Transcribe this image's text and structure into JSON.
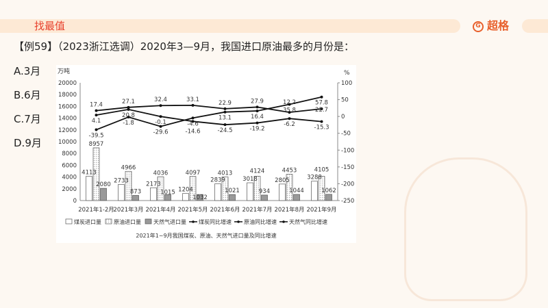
{
  "header": {
    "title": "找最值",
    "brand": "超格"
  },
  "question": "【例59】（2023浙江选调）2020年3—9月，我国进口原油最多的月份是：",
  "options": [
    "A.3月",
    "B.6月",
    "C.7月",
    "D.9月"
  ],
  "chart_data": {
    "type": "bar+line",
    "title": "2021年1~9月我国煤炭、原油、天然气进口量及同比增速",
    "ylabel_left": "万吨",
    "ylabel_right": "%",
    "ylim_left": [
      0,
      20000
    ],
    "yticks_left": [
      0,
      2000,
      4000,
      6000,
      8000,
      10000,
      12000,
      14000,
      16000,
      18000,
      20000
    ],
    "ylim_right": [
      -250,
      100
    ],
    "yticks_right": [
      -250,
      -200,
      -150,
      -100,
      -50,
      0,
      50,
      100
    ],
    "categories": [
      "2021年1-2月",
      "2021年3月",
      "2021年4月",
      "2021年5月",
      "2021年6月",
      "2021年7月",
      "2021年8月",
      "2021年9月"
    ],
    "bars": [
      {
        "name": "煤炭进口量",
        "values": [
          4113,
          2733,
          2173,
          1204,
          2839,
          3018,
          2805,
          3288
        ],
        "color": "#ffffff"
      },
      {
        "name": "原油进口量",
        "values": [
          8957,
          4966,
          4036,
          4097,
          4013,
          4124,
          4453,
          4105
        ],
        "color": "#f0f0f0"
      },
      {
        "name": "天然气进口量",
        "values": [
          2080,
          873,
          1015,
          1032,
          1021,
          934,
          1044,
          1062
        ],
        "color": "#9a9a9a"
      }
    ],
    "lines": [
      {
        "name": "煤炭同比增速",
        "values": [
          -39.5,
          -1.8,
          -29.6,
          -4.6,
          13.1,
          16.4,
          35.8,
          57.8
        ]
      },
      {
        "name": "原油同比增速",
        "values": [
          4.1,
          20.8,
          -0.1,
          -14.6,
          -24.5,
          -19.2,
          -6.2,
          -15.3
        ]
      },
      {
        "name": "天然气同比增速",
        "values": [
          17.4,
          27.1,
          32.4,
          33.1,
          22.9,
          27.9,
          12.2,
          22.7
        ]
      }
    ],
    "legend": "bottom",
    "grid": false
  }
}
